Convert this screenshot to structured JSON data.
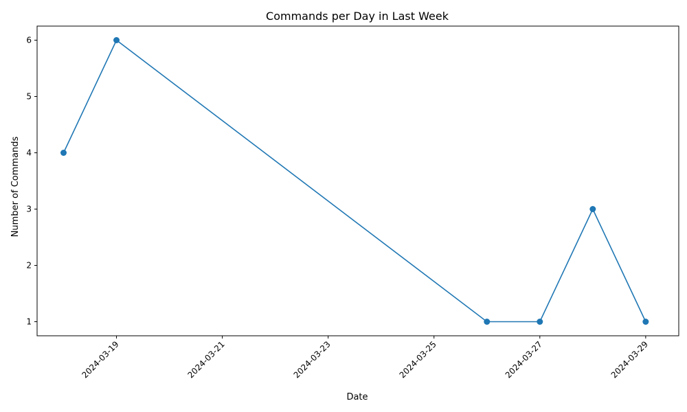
{
  "chart_data": {
    "type": "line",
    "title": "Commands per Day in Last Week",
    "xlabel": "Date",
    "ylabel": "Number of Commands",
    "x": [
      "2024-03-18",
      "2024-03-19",
      "2024-03-26",
      "2024-03-27",
      "2024-03-28",
      "2024-03-29"
    ],
    "series": [
      {
        "values": [
          4,
          6,
          1,
          1,
          3,
          1
        ]
      }
    ],
    "xlim": [
      "2024-03-17T12:00",
      "2024-03-29T15:00"
    ],
    "ylim": [
      0.75,
      6.25
    ],
    "x_ticks": [
      "2024-03-19",
      "2024-03-21",
      "2024-03-23",
      "2024-03-25",
      "2024-03-27",
      "2024-03-29"
    ],
    "y_ticks": [
      1,
      2,
      3,
      4,
      5,
      6
    ],
    "grid": false,
    "line_color": "#1f77b4",
    "marker": "circle"
  }
}
